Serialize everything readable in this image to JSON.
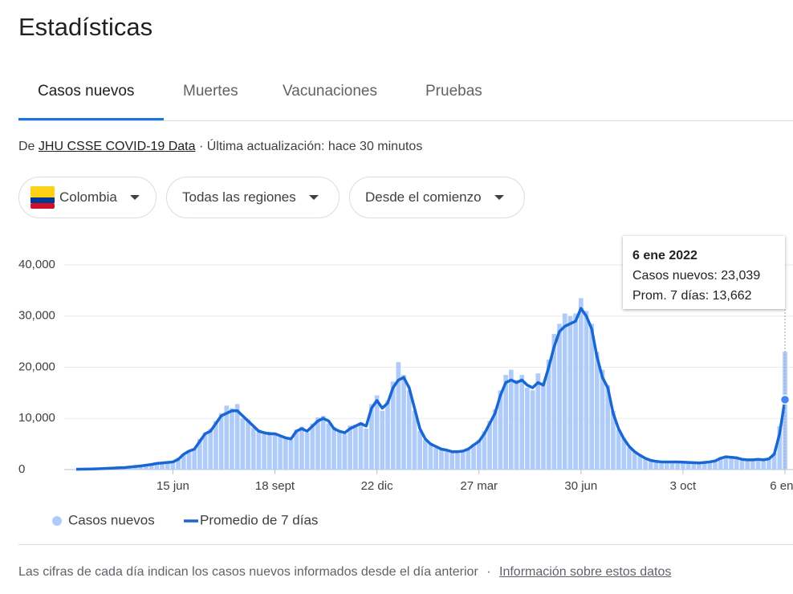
{
  "title": "Estadísticas",
  "tabs": [
    "Casos nuevos",
    "Muertes",
    "Vacunaciones",
    "Pruebas"
  ],
  "source": {
    "prefix": "De",
    "link": "JHU CSSE COVID-19 Data",
    "updated": "· Última actualización: hace 30 minutos"
  },
  "filters": [
    "Colombia",
    "Todas las regiones",
    "Desde el comienzo"
  ],
  "chart_data": {
    "type": "bar",
    "categories": [
      null,
      null,
      null,
      null,
      null,
      null,
      null,
      null,
      null,
      null,
      null,
      null,
      null,
      null,
      null,
      null,
      null,
      null,
      "15 jun",
      null,
      null,
      null,
      null,
      null,
      null,
      null,
      null,
      null,
      null,
      null,
      null,
      null,
      null,
      null,
      null,
      null,
      null,
      "18 sept",
      null,
      null,
      null,
      null,
      null,
      null,
      null,
      null,
      null,
      null,
      null,
      null,
      null,
      null,
      null,
      null,
      null,
      null,
      "22 dic",
      null,
      null,
      null,
      null,
      null,
      null,
      null,
      null,
      null,
      null,
      null,
      null,
      null,
      null,
      null,
      null,
      null,
      null,
      "27 mar",
      null,
      null,
      null,
      null,
      null,
      null,
      null,
      null,
      null,
      null,
      null,
      null,
      null,
      null,
      null,
      null,
      null,
      null,
      "30 jun",
      null,
      null,
      null,
      null,
      null,
      null,
      null,
      null,
      null,
      null,
      null,
      null,
      null,
      null,
      null,
      null,
      null,
      null,
      "3 oct",
      null,
      null,
      null,
      null,
      null,
      null,
      null,
      null,
      null,
      null,
      null,
      null,
      null,
      null,
      null,
      null,
      null,
      null,
      "6 ene"
    ],
    "series": [
      {
        "name": "Casos nuevos",
        "type": "bar",
        "color": "#aecbfa",
        "values": [
          60,
          70,
          120,
          110,
          180,
          210,
          280,
          330,
          420,
          380,
          560,
          580,
          750,
          820,
          1100,
          1250,
          1280,
          1500,
          1450,
          2300,
          3100,
          3800,
          4200,
          6000,
          7200,
          8000,
          9500,
          11000,
          12500,
          12000,
          12800,
          10000,
          9800,
          8200,
          7800,
          7000,
          7400,
          6800,
          6500,
          6300,
          5800,
          7800,
          8400,
          7200,
          9000,
          10200,
          10500,
          9000,
          8300,
          7300,
          7000,
          8600,
          8800,
          9200,
          8000,
          12800,
          14500,
          11500,
          13500,
          17200,
          21000,
          18500,
          15500,
          11500,
          7600,
          5800,
          5200,
          4300,
          3900,
          3700,
          3300,
          3600,
          3700,
          4200,
          5000,
          5800,
          7500,
          9500,
          11800,
          15500,
          18500,
          19500,
          17500,
          18500,
          16000,
          15500,
          18800,
          17000,
          21500,
          26500,
          28500,
          30500,
          30000,
          30500,
          33500,
          31000,
          28500,
          23000,
          19500,
          16500,
          11500,
          7800,
          6200,
          4300,
          3400,
          2700,
          2100,
          1700,
          1650,
          1450,
          1550,
          1480,
          1520,
          1400,
          1380,
          1320,
          1290,
          1450,
          1550,
          1800,
          2400,
          2600,
          2350,
          2250,
          1950,
          1850,
          1950,
          2050,
          1850,
          2200,
          3200,
          8500,
          23039
        ]
      },
      {
        "name": "Promedio de 7 días",
        "type": "line",
        "color": "#1967d2",
        "values": [
          50,
          80,
          100,
          120,
          150,
          200,
          250,
          300,
          350,
          400,
          500,
          600,
          700,
          850,
          1000,
          1200,
          1300,
          1400,
          1500,
          2000,
          3000,
          3600,
          4000,
          5500,
          7000,
          7500,
          9000,
          10500,
          11000,
          11500,
          11500,
          10500,
          9500,
          8500,
          7500,
          7200,
          7000,
          7000,
          6600,
          6200,
          6000,
          7500,
          8000,
          7500,
          8500,
          9500,
          10000,
          9500,
          8000,
          7500,
          7200,
          8000,
          8500,
          9000,
          8500,
          12000,
          13500,
          12000,
          13000,
          16000,
          17500,
          18000,
          16000,
          12000,
          8000,
          6000,
          5000,
          4500,
          4000,
          3800,
          3500,
          3500,
          3600,
          4000,
          4800,
          5500,
          7000,
          9000,
          11000,
          14500,
          17000,
          17500,
          17000,
          17500,
          16500,
          16000,
          17000,
          16500,
          20000,
          24000,
          27000,
          28000,
          28500,
          29000,
          31500,
          30000,
          27500,
          22000,
          18000,
          16000,
          11000,
          8000,
          6000,
          4500,
          3500,
          2800,
          2200,
          1800,
          1600,
          1500,
          1500,
          1500,
          1500,
          1450,
          1400,
          1350,
          1300,
          1400,
          1500,
          1700,
          2200,
          2500,
          2400,
          2300,
          2000,
          1900,
          1900,
          2000,
          1900,
          2100,
          3000,
          7000,
          13662
        ]
      }
    ],
    "ylim": [
      0,
      40000
    ],
    "yticks": [
      0,
      {
        "value": 10000,
        "label": "10,000"
      },
      {
        "value": 20000,
        "label": "20,000"
      },
      {
        "value": 30000,
        "label": "30,000"
      },
      {
        "value": 40000,
        "label": "40,000"
      }
    ],
    "grid": true
  },
  "tooltip": {
    "date": "6 ene 2022",
    "lines": [
      "Casos nuevos: 23,039",
      "Prom. 7 días: 13,662"
    ]
  },
  "footer": {
    "note": "Las cifras de cada día indican los casos nuevos informados desde el día anterior",
    "separator": "·",
    "link": "Información sobre estos datos"
  }
}
